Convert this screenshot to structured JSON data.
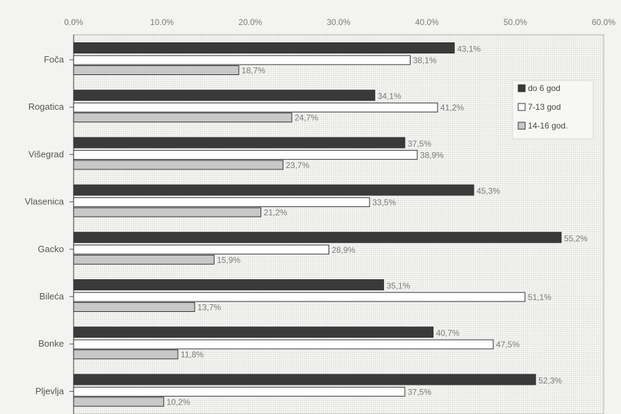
{
  "chart_data": {
    "type": "bar",
    "orientation": "horizontal",
    "title": "",
    "xlabel": "",
    "ylabel": "",
    "xlim": [
      0,
      60
    ],
    "ticks": [
      "0.0%",
      "10.0%",
      "20.0%",
      "30.0%",
      "40.0%",
      "50.0%",
      "60.0%"
    ],
    "tick_values": [
      0,
      10,
      20,
      30,
      40,
      50,
      60
    ],
    "categories": [
      "Foča",
      "Rogatica",
      "Višegrad",
      "Vlasenica",
      "Gacko",
      "Bileća",
      "Bonke",
      "Pljevlja"
    ],
    "series": [
      {
        "name": "do 6 god",
        "color": "#3a3a3a",
        "values": [
          43.1,
          34.1,
          37.5,
          45.3,
          55.2,
          35.1,
          40.7,
          52.3
        ],
        "labels": [
          "43,1%",
          "34,1%",
          "37,5%",
          "45,3%",
          "55,2%",
          "35,1%",
          "40,7%",
          "52,3%"
        ]
      },
      {
        "name": "7-13 god",
        "color": "#ffffff",
        "values": [
          38.1,
          41.2,
          38.9,
          33.5,
          28.9,
          51.1,
          47.5,
          37.5
        ],
        "labels": [
          "38,1%",
          "41,2%",
          "38,9%",
          "33,5%",
          "28,9%",
          "51,1%",
          "47,5%",
          "37,5%"
        ]
      },
      {
        "name": "14-16 god.",
        "color": "#c8c8c8",
        "values": [
          18.7,
          24.7,
          23.7,
          21.2,
          15.9,
          13.7,
          11.8,
          10.2
        ],
        "labels": [
          "18,7%",
          "24,7%",
          "23,7%",
          "21,2%",
          "15,9%",
          "13,7%",
          "11,8%",
          "10,2%"
        ]
      }
    ],
    "legend_position": "right",
    "grid": false
  }
}
